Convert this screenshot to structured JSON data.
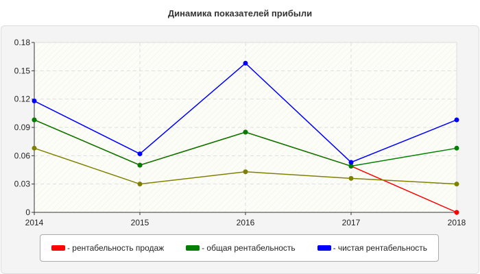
{
  "chart_data": {
    "type": "line",
    "title": "Динамика показателей прибыли",
    "categories": [
      "2014",
      "2015",
      "2016",
      "2017",
      "2018"
    ],
    "ylim": [
      0,
      0.18
    ],
    "yticks": [
      "0",
      "0.03",
      "0.06",
      "0.09",
      "0.12",
      "0.15",
      "0.18"
    ],
    "grid": true,
    "legend_placement": "bottom",
    "series": [
      {
        "name": "- рентабельность продаж",
        "color": "#ff0000",
        "values": [
          0.098,
          0.05,
          0.085,
          0.049,
          0.0
        ]
      },
      {
        "name": "- общая рентабельность",
        "color": "#008000",
        "values": [
          0.098,
          0.05,
          0.085,
          0.049,
          0.068
        ]
      },
      {
        "name": "- чистая рентабельность",
        "color": "#0000ff",
        "values": [
          0.118,
          0.062,
          0.158,
          0.053,
          0.098
        ]
      },
      {
        "color": "#808000",
        "values": [
          0.068,
          0.03,
          0.043,
          0.036,
          0.03
        ]
      }
    ]
  }
}
